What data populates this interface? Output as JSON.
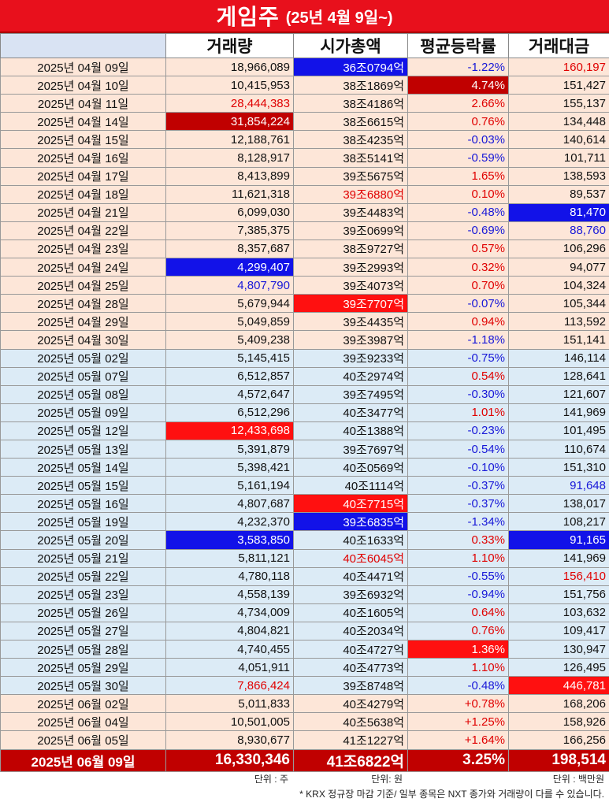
{
  "title": {
    "main": "게임주",
    "sub": "(25년 4월 9일~)"
  },
  "headers": [
    "거래량",
    "시가총액",
    "평균등락률",
    "거래대금"
  ],
  "rows": [
    {
      "date": "2025년 04월 09일",
      "vol": "18,966,089",
      "cap": "36조0794억",
      "chg": "-1.22%",
      "amt": "160,197",
      "m": "apr",
      "cs": {
        "cap": "bg-blue",
        "chg": "neg",
        "amt": "pos"
      }
    },
    {
      "date": "2025년 04월 10일",
      "vol": "10,415,953",
      "cap": "38조1869억",
      "chg": "4.74%",
      "amt": "151,427",
      "m": "apr",
      "cs": {
        "chg": "bg-dred"
      }
    },
    {
      "date": "2025년 04월 11일",
      "vol": "28,444,383",
      "cap": "38조4186억",
      "chg": "2.66%",
      "amt": "155,137",
      "m": "apr",
      "cs": {
        "vol": "pos",
        "chg": "pos"
      }
    },
    {
      "date": "2025년 04월 14일",
      "vol": "31,854,224",
      "cap": "38조6615억",
      "chg": "0.76%",
      "amt": "134,448",
      "m": "apr",
      "cs": {
        "vol": "bg-dred",
        "chg": "pos"
      }
    },
    {
      "date": "2025년 04월 15일",
      "vol": "12,188,761",
      "cap": "38조4235억",
      "chg": "-0.03%",
      "amt": "140,614",
      "m": "apr",
      "cs": {
        "chg": "neg"
      }
    },
    {
      "date": "2025년 04월 16일",
      "vol": "8,128,917",
      "cap": "38조5141억",
      "chg": "-0.59%",
      "amt": "101,711",
      "m": "apr",
      "cs": {
        "chg": "neg"
      }
    },
    {
      "date": "2025년 04월 17일",
      "vol": "8,413,899",
      "cap": "39조5675억",
      "chg": "1.65%",
      "amt": "138,593",
      "m": "apr",
      "cs": {
        "chg": "pos"
      }
    },
    {
      "date": "2025년 04월 18일",
      "vol": "11,621,318",
      "cap": "39조6880억",
      "chg": "0.10%",
      "amt": "89,537",
      "m": "apr",
      "cs": {
        "cap": "pos",
        "chg": "pos"
      }
    },
    {
      "date": "2025년 04월 21일",
      "vol": "6,099,030",
      "cap": "39조4483억",
      "chg": "-0.48%",
      "amt": "81,470",
      "m": "apr",
      "cs": {
        "chg": "neg",
        "amt": "bg-blue"
      }
    },
    {
      "date": "2025년 04월 22일",
      "vol": "7,385,375",
      "cap": "39조0699억",
      "chg": "-0.69%",
      "amt": "88,760",
      "m": "apr",
      "cs": {
        "chg": "neg",
        "amt": "neg"
      }
    },
    {
      "date": "2025년 04월 23일",
      "vol": "8,357,687",
      "cap": "38조9727억",
      "chg": "0.57%",
      "amt": "106,296",
      "m": "apr",
      "cs": {
        "chg": "pos"
      }
    },
    {
      "date": "2025년 04월 24일",
      "vol": "4,299,407",
      "cap": "39조2993억",
      "chg": "0.32%",
      "amt": "94,077",
      "m": "apr",
      "cs": {
        "vol": "bg-blue",
        "chg": "pos"
      }
    },
    {
      "date": "2025년 04월 25일",
      "vol": "4,807,790",
      "cap": "39조4073억",
      "chg": "0.70%",
      "amt": "104,324",
      "m": "apr",
      "cs": {
        "vol": "neg",
        "chg": "pos"
      }
    },
    {
      "date": "2025년 04월 28일",
      "vol": "5,679,944",
      "cap": "39조7707억",
      "chg": "-0.07%",
      "amt": "105,344",
      "m": "apr",
      "cs": {
        "cap": "bg-red",
        "chg": "neg"
      }
    },
    {
      "date": "2025년 04월 29일",
      "vol": "5,049,859",
      "cap": "39조4435억",
      "chg": "0.94%",
      "amt": "113,592",
      "m": "apr",
      "cs": {
        "chg": "pos"
      }
    },
    {
      "date": "2025년 04월 30일",
      "vol": "5,409,238",
      "cap": "39조3987억",
      "chg": "-1.18%",
      "amt": "151,141",
      "m": "apr",
      "cs": {
        "chg": "neg"
      }
    },
    {
      "date": "2025년 05월 02일",
      "vol": "5,145,415",
      "cap": "39조9233억",
      "chg": "-0.75%",
      "amt": "146,114",
      "m": "may",
      "cs": {
        "chg": "neg"
      }
    },
    {
      "date": "2025년 05월 07일",
      "vol": "6,512,857",
      "cap": "40조2974억",
      "chg": "0.54%",
      "amt": "128,641",
      "m": "may",
      "cs": {
        "chg": "pos"
      }
    },
    {
      "date": "2025년 05월 08일",
      "vol": "4,572,647",
      "cap": "39조7495억",
      "chg": "-0.30%",
      "amt": "121,607",
      "m": "may",
      "cs": {
        "chg": "neg"
      }
    },
    {
      "date": "2025년 05월 09일",
      "vol": "6,512,296",
      "cap": "40조3477억",
      "chg": "1.01%",
      "amt": "141,969",
      "m": "may",
      "cs": {
        "chg": "pos"
      }
    },
    {
      "date": "2025년 05월 12일",
      "vol": "12,433,698",
      "cap": "40조1388억",
      "chg": "-0.23%",
      "amt": "101,495",
      "m": "may",
      "cs": {
        "vol": "bg-red",
        "chg": "neg"
      }
    },
    {
      "date": "2025년 05월 13일",
      "vol": "5,391,879",
      "cap": "39조7697억",
      "chg": "-0.54%",
      "amt": "110,674",
      "m": "may",
      "cs": {
        "chg": "neg"
      }
    },
    {
      "date": "2025년 05월 14일",
      "vol": "5,398,421",
      "cap": "40조0569억",
      "chg": "-0.10%",
      "amt": "151,310",
      "m": "may",
      "cs": {
        "chg": "neg"
      }
    },
    {
      "date": "2025년 05월 15일",
      "vol": "5,161,194",
      "cap": "40조1114억",
      "chg": "-0.37%",
      "amt": "91,648",
      "m": "may",
      "cs": {
        "chg": "neg",
        "amt": "neg"
      }
    },
    {
      "date": "2025년 05월 16일",
      "vol": "4,807,687",
      "cap": "40조7715억",
      "chg": "-0.37%",
      "amt": "138,017",
      "m": "may",
      "cs": {
        "cap": "bg-red",
        "chg": "neg"
      }
    },
    {
      "date": "2025년 05월 19일",
      "vol": "4,232,370",
      "cap": "39조6835억",
      "chg": "-1.34%",
      "amt": "108,217",
      "m": "may",
      "cs": {
        "cap": "bg-blue",
        "chg": "neg"
      }
    },
    {
      "date": "2025년 05월 20일",
      "vol": "3,583,850",
      "cap": "40조1633억",
      "chg": "0.33%",
      "amt": "91,165",
      "m": "may",
      "cs": {
        "vol": "bg-blue",
        "chg": "pos",
        "amt": "bg-blue"
      }
    },
    {
      "date": "2025년 05월 21일",
      "vol": "5,811,121",
      "cap": "40조6045억",
      "chg": "1.10%",
      "amt": "141,969",
      "m": "may",
      "cs": {
        "cap": "pos",
        "chg": "pos"
      }
    },
    {
      "date": "2025년 05월 22일",
      "vol": "4,780,118",
      "cap": "40조4471억",
      "chg": "-0.55%",
      "amt": "156,410",
      "m": "may",
      "cs": {
        "chg": "neg",
        "amt": "pos"
      }
    },
    {
      "date": "2025년 05월 23일",
      "vol": "4,558,139",
      "cap": "39조6932억",
      "chg": "-0.94%",
      "amt": "151,756",
      "m": "may",
      "cs": {
        "chg": "neg"
      }
    },
    {
      "date": "2025년 05월 26일",
      "vol": "4,734,009",
      "cap": "40조1605억",
      "chg": "0.64%",
      "amt": "103,632",
      "m": "may",
      "cs": {
        "chg": "pos"
      }
    },
    {
      "date": "2025년 05월 27일",
      "vol": "4,804,821",
      "cap": "40조2034억",
      "chg": "0.76%",
      "amt": "109,417",
      "m": "may",
      "cs": {
        "chg": "pos"
      }
    },
    {
      "date": "2025년 05월 28일",
      "vol": "4,740,455",
      "cap": "40조4727억",
      "chg": "1.36%",
      "amt": "130,947",
      "m": "may",
      "cs": {
        "chg": "bg-red"
      }
    },
    {
      "date": "2025년 05월 29일",
      "vol": "4,051,911",
      "cap": "40조4773억",
      "chg": "1.10%",
      "amt": "126,495",
      "m": "may",
      "cs": {
        "chg": "pos"
      }
    },
    {
      "date": "2025년 05월 30일",
      "vol": "7,866,424",
      "cap": "39조8748억",
      "chg": "-0.48%",
      "amt": "446,781",
      "m": "may",
      "cs": {
        "vol": "pos",
        "chg": "neg",
        "amt": "bg-red"
      }
    },
    {
      "date": "2025년 06월 02일",
      "vol": "5,011,833",
      "cap": "40조4279억",
      "chg": "+0.78%",
      "amt": "168,206",
      "m": "jun",
      "cs": {
        "chg": "pos"
      }
    },
    {
      "date": "2025년 06월 04일",
      "vol": "10,501,005",
      "cap": "40조5638억",
      "chg": "+1.25%",
      "amt": "158,926",
      "m": "jun",
      "cs": {
        "chg": "pos"
      }
    },
    {
      "date": "2025년 06월 05일",
      "vol": "8,930,677",
      "cap": "41조1227억",
      "chg": "+1.64%",
      "amt": "166,256",
      "m": "jun",
      "cs": {
        "chg": "pos"
      }
    }
  ],
  "final": {
    "date": "2025년 06월 09일",
    "vol": "16,330,346",
    "cap": "41조6822억",
    "chg": "3.25%",
    "amt": "198,514"
  },
  "units": {
    "vol": "단위 : 주",
    "cap": "단위: 원",
    "amt": "단위 : 백만원"
  },
  "note": "* KRX 정규장 마감 기준/ 일부 종목은 NXT 종가와 거래량이 다를 수 있습니다.",
  "colors": {
    "red": "#ff1010",
    "dark_red": "#c00000",
    "blue": "#1212e8",
    "april_bg": "#fde6d8",
    "may_bg": "#dcebf6"
  }
}
